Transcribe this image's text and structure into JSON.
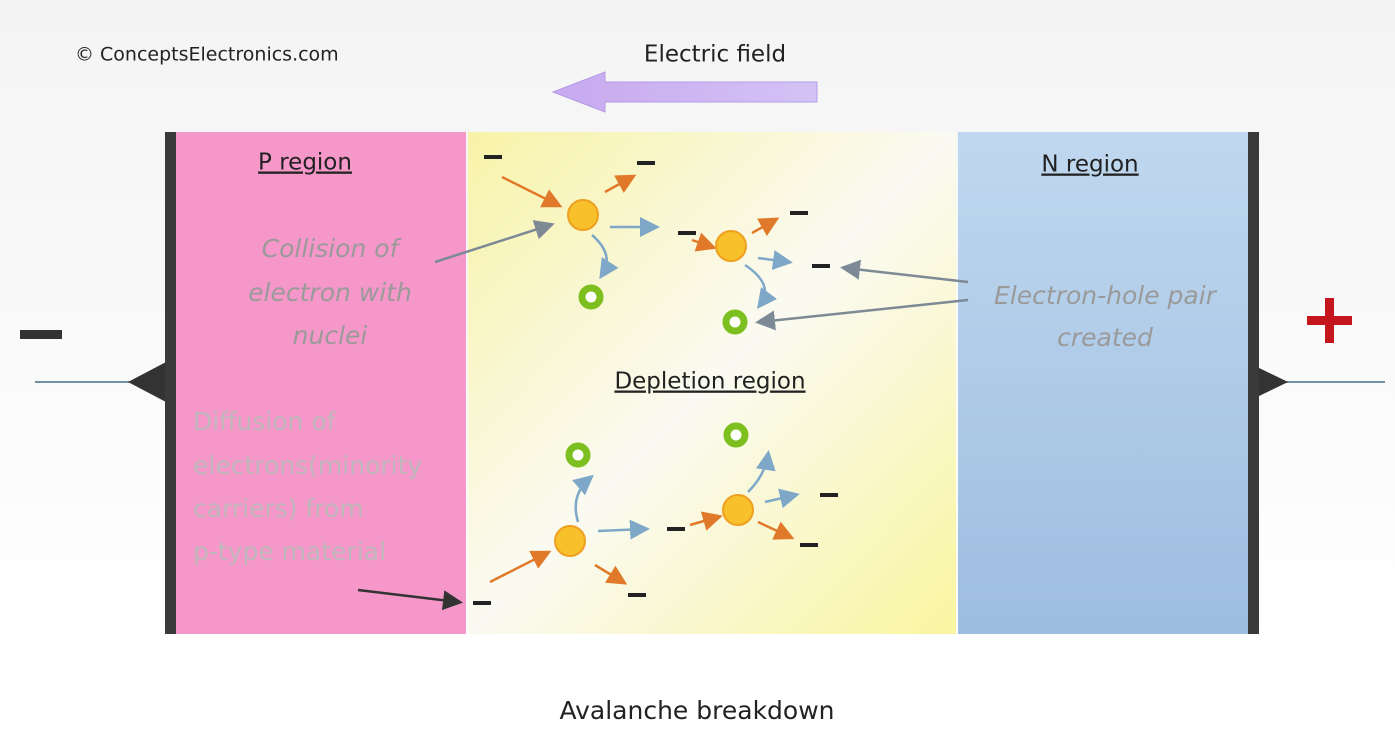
{
  "copyright": "© ConceptsElectronics.com",
  "field_label": "Electric field",
  "regions": {
    "p": "P region",
    "depletion": "Depletion region",
    "n": "N region"
  },
  "notes": {
    "collision": [
      "Collision of",
      "electron with",
      "nuclei"
    ],
    "pair": [
      "Electron-hole pair",
      "created"
    ],
    "diffusion": [
      "Diffusion of",
      "electrons(minority",
      "carriers) from",
      "p-type material"
    ]
  },
  "caption": "Avalanche breakdown"
}
